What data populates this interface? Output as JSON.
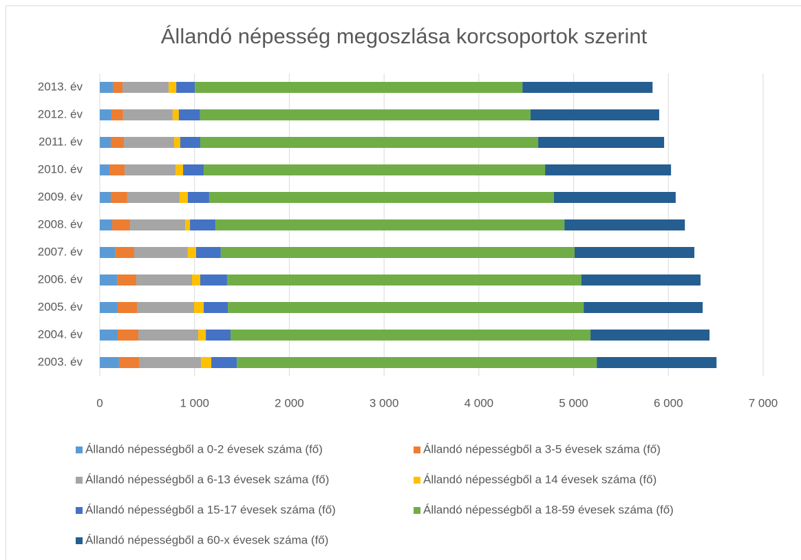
{
  "chart_data": {
    "type": "stacked_bar_horizontal",
    "title": "Állandó népesség megoszlása korcsoportok szerint",
    "categories": [
      "2003. év",
      "2004. év",
      "2005. év",
      "2006. év",
      "2007. év",
      "2008. év",
      "2009. év",
      "2010. év",
      "2011. év",
      "2012. év",
      "2013. év"
    ],
    "series": [
      {
        "name": "Állandó népességből a 0-2 évesek száma (fő)",
        "color": "#5b9bd5",
        "values": [
          203,
          189,
          189,
          182,
          160,
          131,
          116,
          102,
          116,
          123,
          138
        ]
      },
      {
        "name": "Állandó népességből a 3-5 évesek száma (fő)",
        "color": "#ed7d31",
        "values": [
          211,
          218,
          203,
          203,
          203,
          189,
          174,
          160,
          138,
          123,
          102
        ]
      },
      {
        "name": "Állandó népességből a 6-13 évesek száma (fő)",
        "color": "#a5a5a5",
        "values": [
          654,
          632,
          603,
          588,
          566,
          581,
          552,
          537,
          530,
          523,
          487
        ]
      },
      {
        "name": "Állandó népességből a 14 évesek száma (fő)",
        "color": "#ffc000",
        "values": [
          109,
          80,
          102,
          87,
          87,
          51,
          87,
          80,
          65,
          65,
          80
        ]
      },
      {
        "name": "Állandó népességből a 15-17 évesek száma (fő)",
        "color": "#4472c4",
        "values": [
          269,
          261,
          254,
          283,
          261,
          269,
          225,
          218,
          211,
          225,
          196
        ]
      },
      {
        "name": "Állandó népességből a 18-59 évesek száma (fő)",
        "color": "#70ad47",
        "values": [
          3798,
          3798,
          3755,
          3740,
          3733,
          3682,
          3638,
          3602,
          3566,
          3486,
          3457
        ]
      },
      {
        "name": "Állandó népességből a 60-x évesek száma (fő)",
        "color": "#255e91",
        "values": [
          1264,
          1256,
          1256,
          1256,
          1264,
          1271,
          1285,
          1329,
          1329,
          1358,
          1373
        ]
      }
    ],
    "xlim": [
      0,
      7000
    ],
    "xticks": [
      0,
      {
        "value": 1000,
        "label": "1 000"
      },
      {
        "value": 2000,
        "label": "2 000"
      },
      {
        "value": 3000,
        "label": "3 000"
      },
      {
        "value": 4000,
        "label": "4 000"
      },
      {
        "value": 5000,
        "label": "5 000"
      },
      {
        "value": 6000,
        "label": "6 000"
      },
      {
        "value": 7000,
        "label": "7 000"
      }
    ],
    "grid": true
  }
}
